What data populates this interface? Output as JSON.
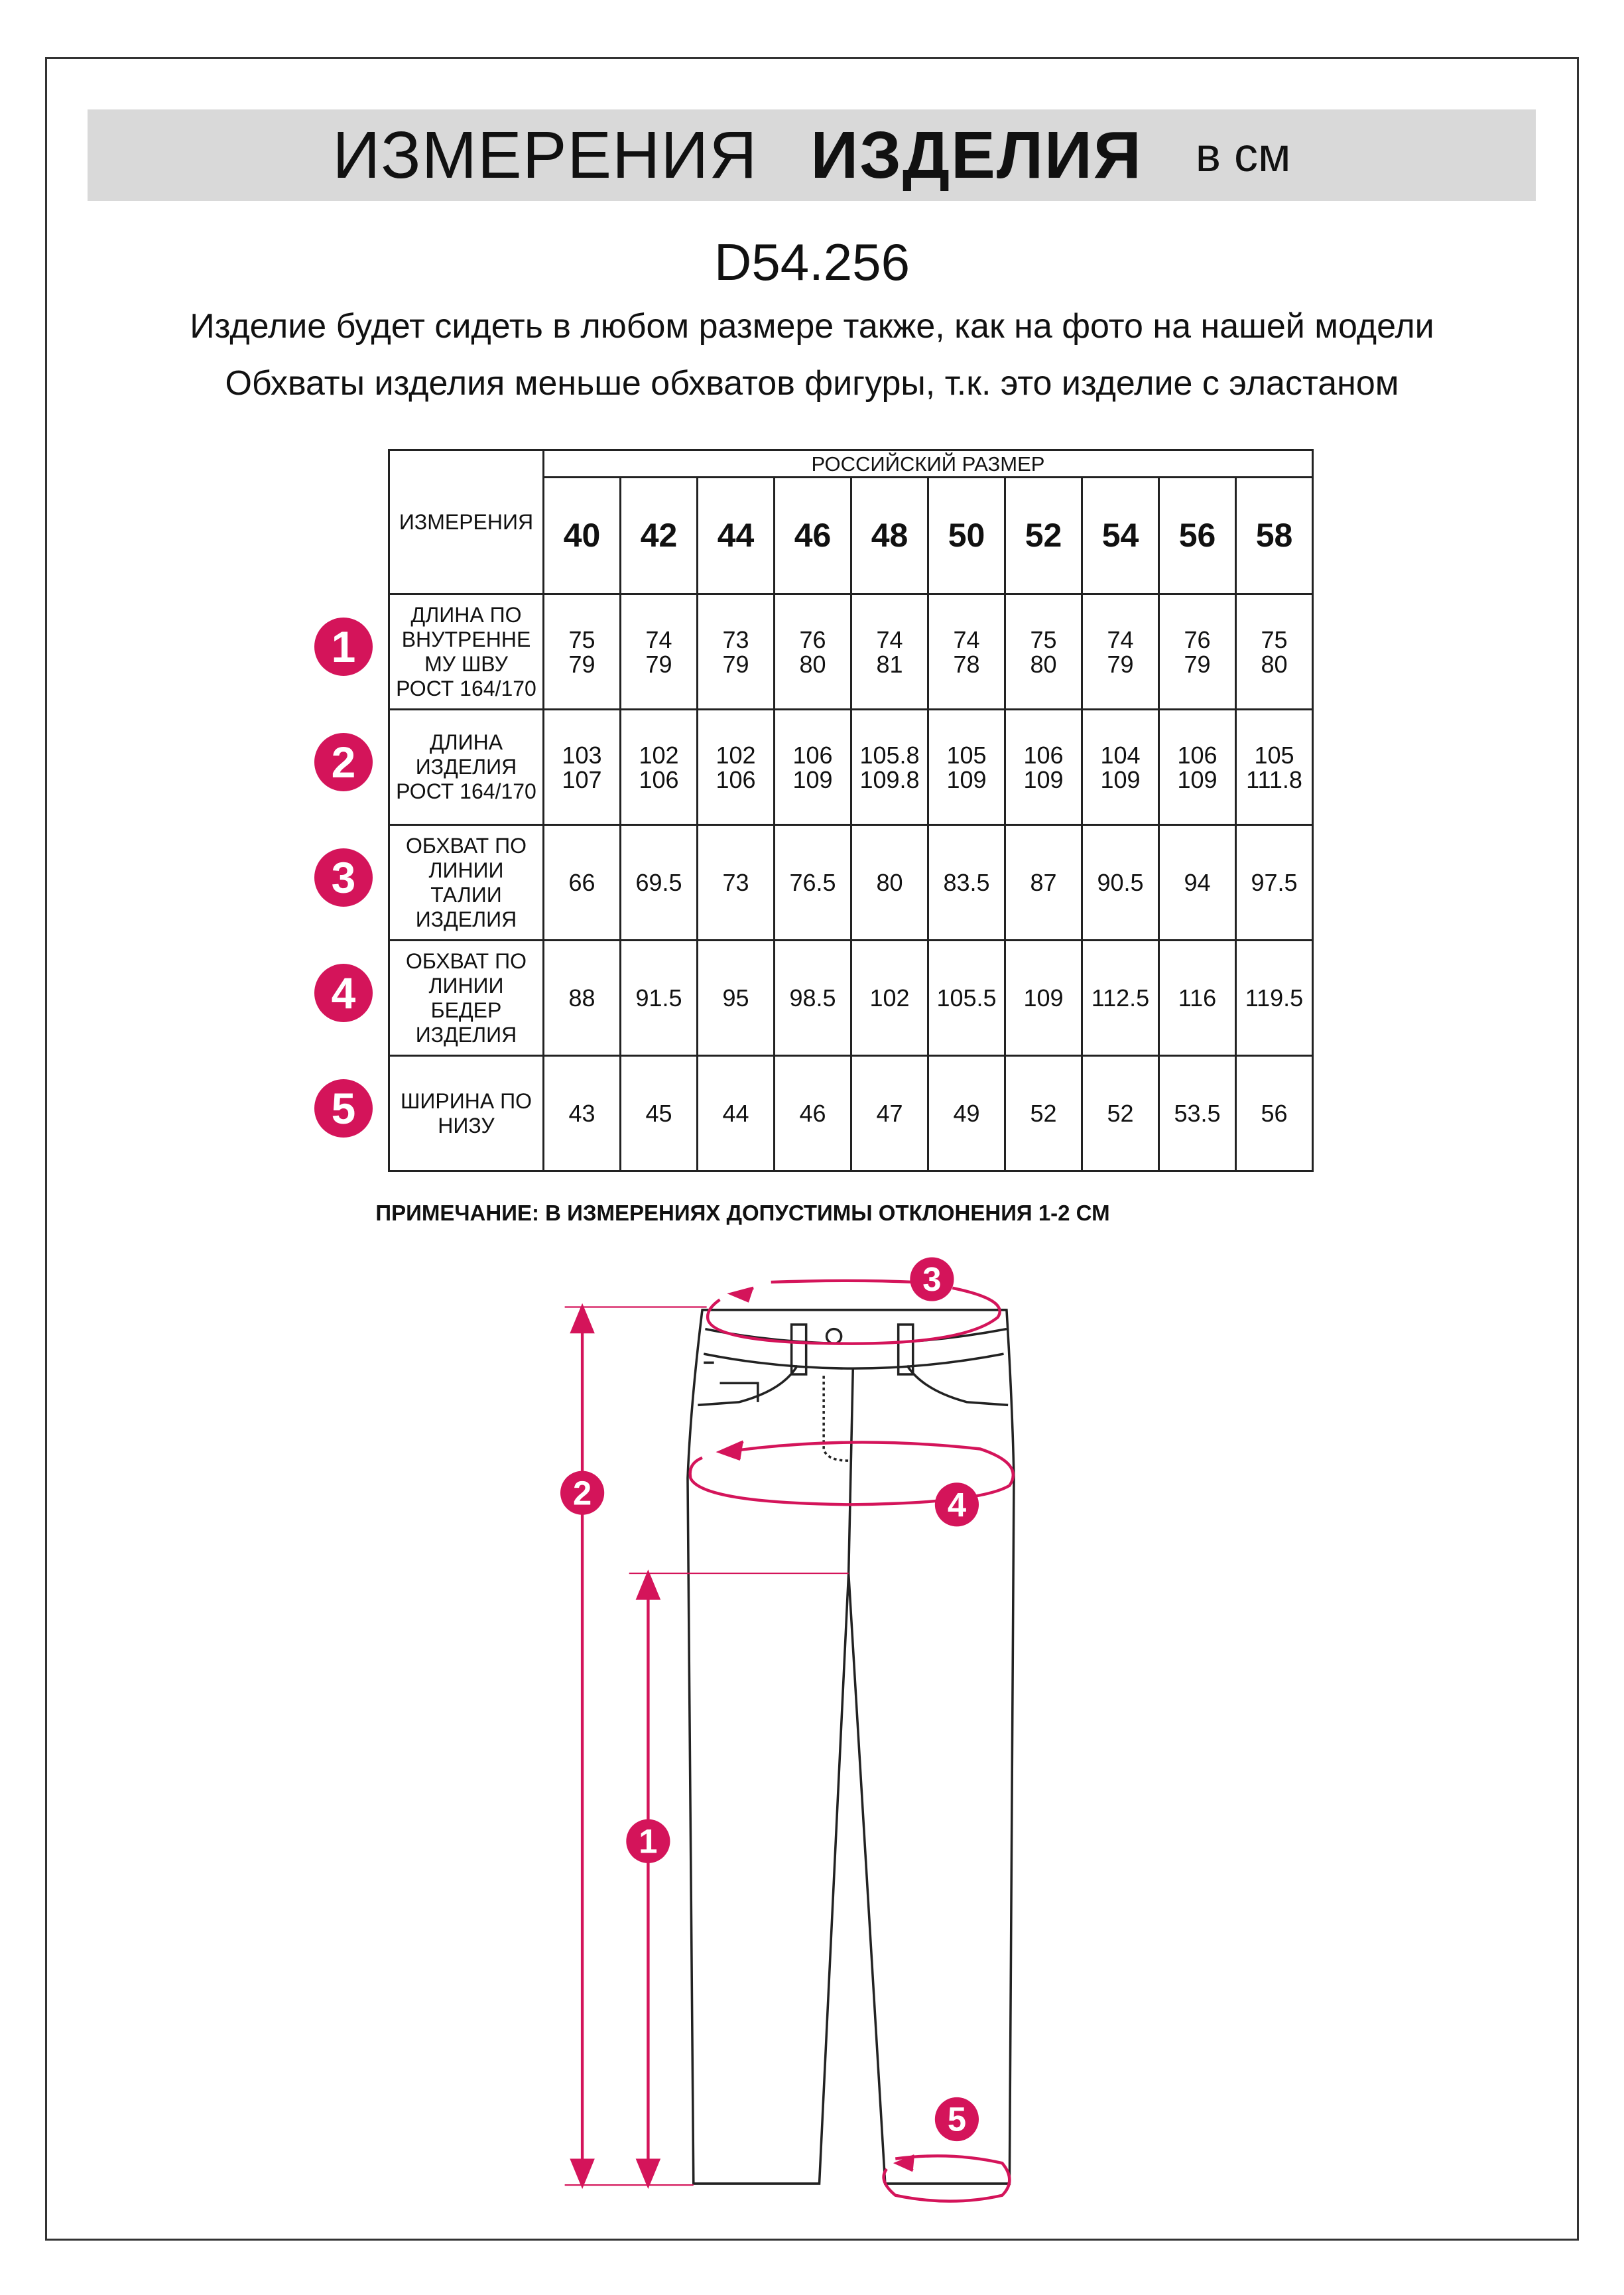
{
  "header": {
    "title_light": "ИЗМЕРЕНИЯ",
    "title_bold": "ИЗДЕЛИЯ",
    "unit": "в см"
  },
  "article": "D54.256",
  "subtitle_lines": [
    "Изделие будет сидеть в любом размере также, как на фото на нашей модели",
    "Обхваты изделия меньше обхватов фигуры, т.к. это изделие с эластаном"
  ],
  "table": {
    "corner_label": "ИЗМЕРЕНИЯ",
    "group_header": "РОССИЙСКИЙ РАЗМЕР",
    "sizes": [
      "40",
      "42",
      "44",
      "46",
      "48",
      "50",
      "52",
      "54",
      "56",
      "58"
    ],
    "rows": [
      {
        "num": "1",
        "label": [
          "ДЛИНА ПО",
          "ВНУТРЕННЕ",
          "МУ ШВУ",
          "РОСТ 164/170"
        ],
        "values": [
          [
            "75",
            "79"
          ],
          [
            "74",
            "79"
          ],
          [
            "73",
            "79"
          ],
          [
            "76",
            "80"
          ],
          [
            "74",
            "81"
          ],
          [
            "74",
            "78"
          ],
          [
            "75",
            "80"
          ],
          [
            "74",
            "79"
          ],
          [
            "76",
            "79"
          ],
          [
            "75",
            "80"
          ]
        ]
      },
      {
        "num": "2",
        "label": [
          "ДЛИНА",
          "ИЗДЕЛИЯ",
          "РОСТ 164/170"
        ],
        "values": [
          [
            "103",
            "107"
          ],
          [
            "102",
            "106"
          ],
          [
            "102",
            "106"
          ],
          [
            "106",
            "109"
          ],
          [
            "105.8",
            "109.8"
          ],
          [
            "105",
            "109"
          ],
          [
            "106",
            "109"
          ],
          [
            "104",
            "109"
          ],
          [
            "106",
            "109"
          ],
          [
            "105",
            "111.8"
          ]
        ]
      },
      {
        "num": "3",
        "label": [
          "ОБХВАТ ПО",
          "ЛИНИИ",
          "ТАЛИИ",
          "ИЗДЕЛИЯ"
        ],
        "values": [
          [
            "66"
          ],
          [
            "69.5"
          ],
          [
            "73"
          ],
          [
            "76.5"
          ],
          [
            "80"
          ],
          [
            "83.5"
          ],
          [
            "87"
          ],
          [
            "90.5"
          ],
          [
            "94"
          ],
          [
            "97.5"
          ]
        ]
      },
      {
        "num": "4",
        "label": [
          "ОБХВАТ ПО",
          "ЛИНИИ",
          "БЕДЕР",
          "ИЗДЕЛИЯ"
        ],
        "values": [
          [
            "88"
          ],
          [
            "91.5"
          ],
          [
            "95"
          ],
          [
            "98.5"
          ],
          [
            "102"
          ],
          [
            "105.5"
          ],
          [
            "109"
          ],
          [
            "112.5"
          ],
          [
            "116"
          ],
          [
            "119.5"
          ]
        ]
      },
      {
        "num": "5",
        "label": [
          "ШИРИНА ПО",
          "НИЗУ"
        ],
        "values": [
          [
            "43"
          ],
          [
            "45"
          ],
          [
            "44"
          ],
          [
            "46"
          ],
          [
            "47"
          ],
          [
            "49"
          ],
          [
            "52"
          ],
          [
            "52"
          ],
          [
            "53.5"
          ],
          [
            "56"
          ]
        ]
      }
    ]
  },
  "note": "ПРИМЕЧАНИЕ: В ИЗМЕРЕНИЯХ ДОПУСТИМЫ ОТКЛОНЕНИЯ 1-2 СМ",
  "diagram": {
    "markers": [
      "1",
      "2",
      "3",
      "4",
      "5"
    ]
  },
  "colors": {
    "accent": "#d4145a",
    "title_bar": "#d9d9d9"
  }
}
